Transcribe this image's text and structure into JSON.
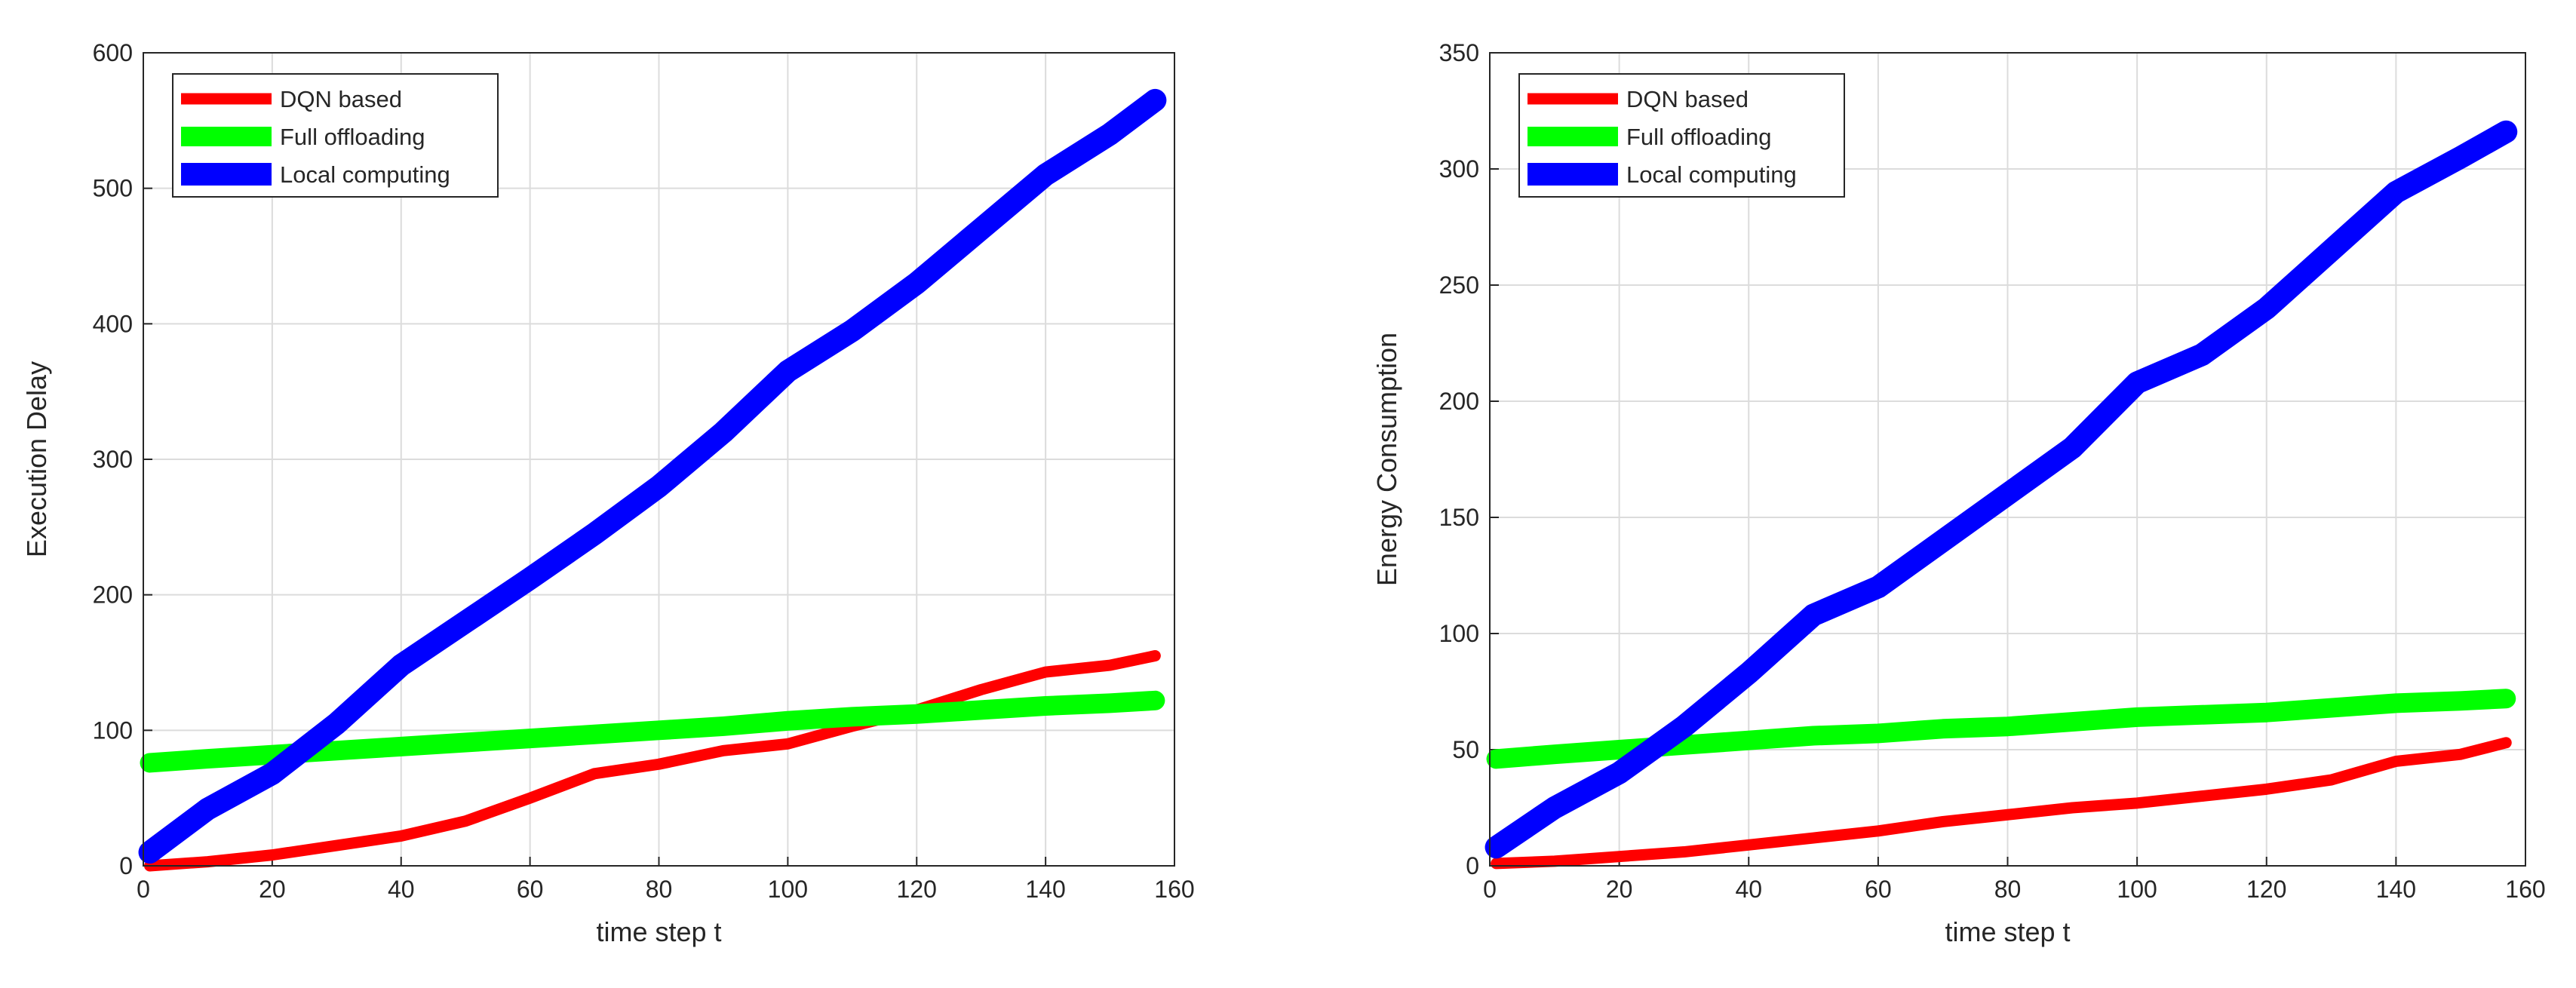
{
  "chart_data": [
    {
      "type": "line",
      "xlabel": "time step t",
      "ylabel": "Execution Delay",
      "x": [
        1,
        10,
        20,
        30,
        40,
        50,
        60,
        70,
        80,
        90,
        100,
        110,
        120,
        130,
        140,
        150,
        157
      ],
      "series": [
        {
          "name": "DQN based",
          "color": "#ff0000",
          "values": [
            0,
            3,
            8,
            15,
            22,
            33,
            50,
            68,
            75,
            85,
            90,
            103,
            115,
            130,
            143,
            148,
            155
          ]
        },
        {
          "name": "Full offloading",
          "color": "#00ff00",
          "values": [
            76,
            79,
            82,
            85,
            88,
            91,
            94,
            97,
            100,
            103,
            107,
            110,
            112,
            115,
            118,
            120,
            122
          ]
        },
        {
          "name": "Local computing",
          "color": "#0000ff",
          "values": [
            10,
            42,
            68,
            105,
            148,
            180,
            212,
            245,
            280,
            320,
            365,
            395,
            430,
            470,
            510,
            540,
            565
          ]
        }
      ],
      "xlim": [
        0,
        160
      ],
      "ylim": [
        0,
        600
      ],
      "xticks": [
        0,
        20,
        40,
        60,
        80,
        100,
        120,
        140,
        160
      ],
      "yticks": [
        0,
        100,
        200,
        300,
        400,
        500,
        600
      ],
      "grid": true,
      "legend": "upper left"
    },
    {
      "type": "line",
      "xlabel": "time step t",
      "ylabel": "Energy Consumption",
      "x": [
        1,
        10,
        20,
        30,
        40,
        50,
        60,
        70,
        80,
        90,
        100,
        110,
        120,
        130,
        140,
        150,
        157
      ],
      "series": [
        {
          "name": "DQN based",
          "color": "#ff0000",
          "values": [
            1,
            2,
            4,
            6,
            9,
            12,
            15,
            19,
            22,
            25,
            27,
            30,
            33,
            37,
            45,
            48,
            53
          ]
        },
        {
          "name": "Full offloading",
          "color": "#00ff00",
          "values": [
            46,
            48,
            50,
            52,
            54,
            56,
            57,
            59,
            60,
            62,
            64,
            65,
            66,
            68,
            70,
            71,
            72
          ]
        },
        {
          "name": "Local computing",
          "color": "#0000ff",
          "values": [
            8,
            25,
            40,
            60,
            83,
            108,
            120,
            140,
            160,
            180,
            208,
            220,
            240,
            265,
            290,
            305,
            316
          ]
        }
      ],
      "xlim": [
        0,
        160
      ],
      "ylim": [
        0,
        350
      ],
      "xticks": [
        0,
        20,
        40,
        60,
        80,
        100,
        120,
        140,
        160
      ],
      "yticks": [
        0,
        50,
        100,
        150,
        200,
        250,
        300,
        350
      ],
      "grid": true,
      "legend": "upper left"
    }
  ]
}
